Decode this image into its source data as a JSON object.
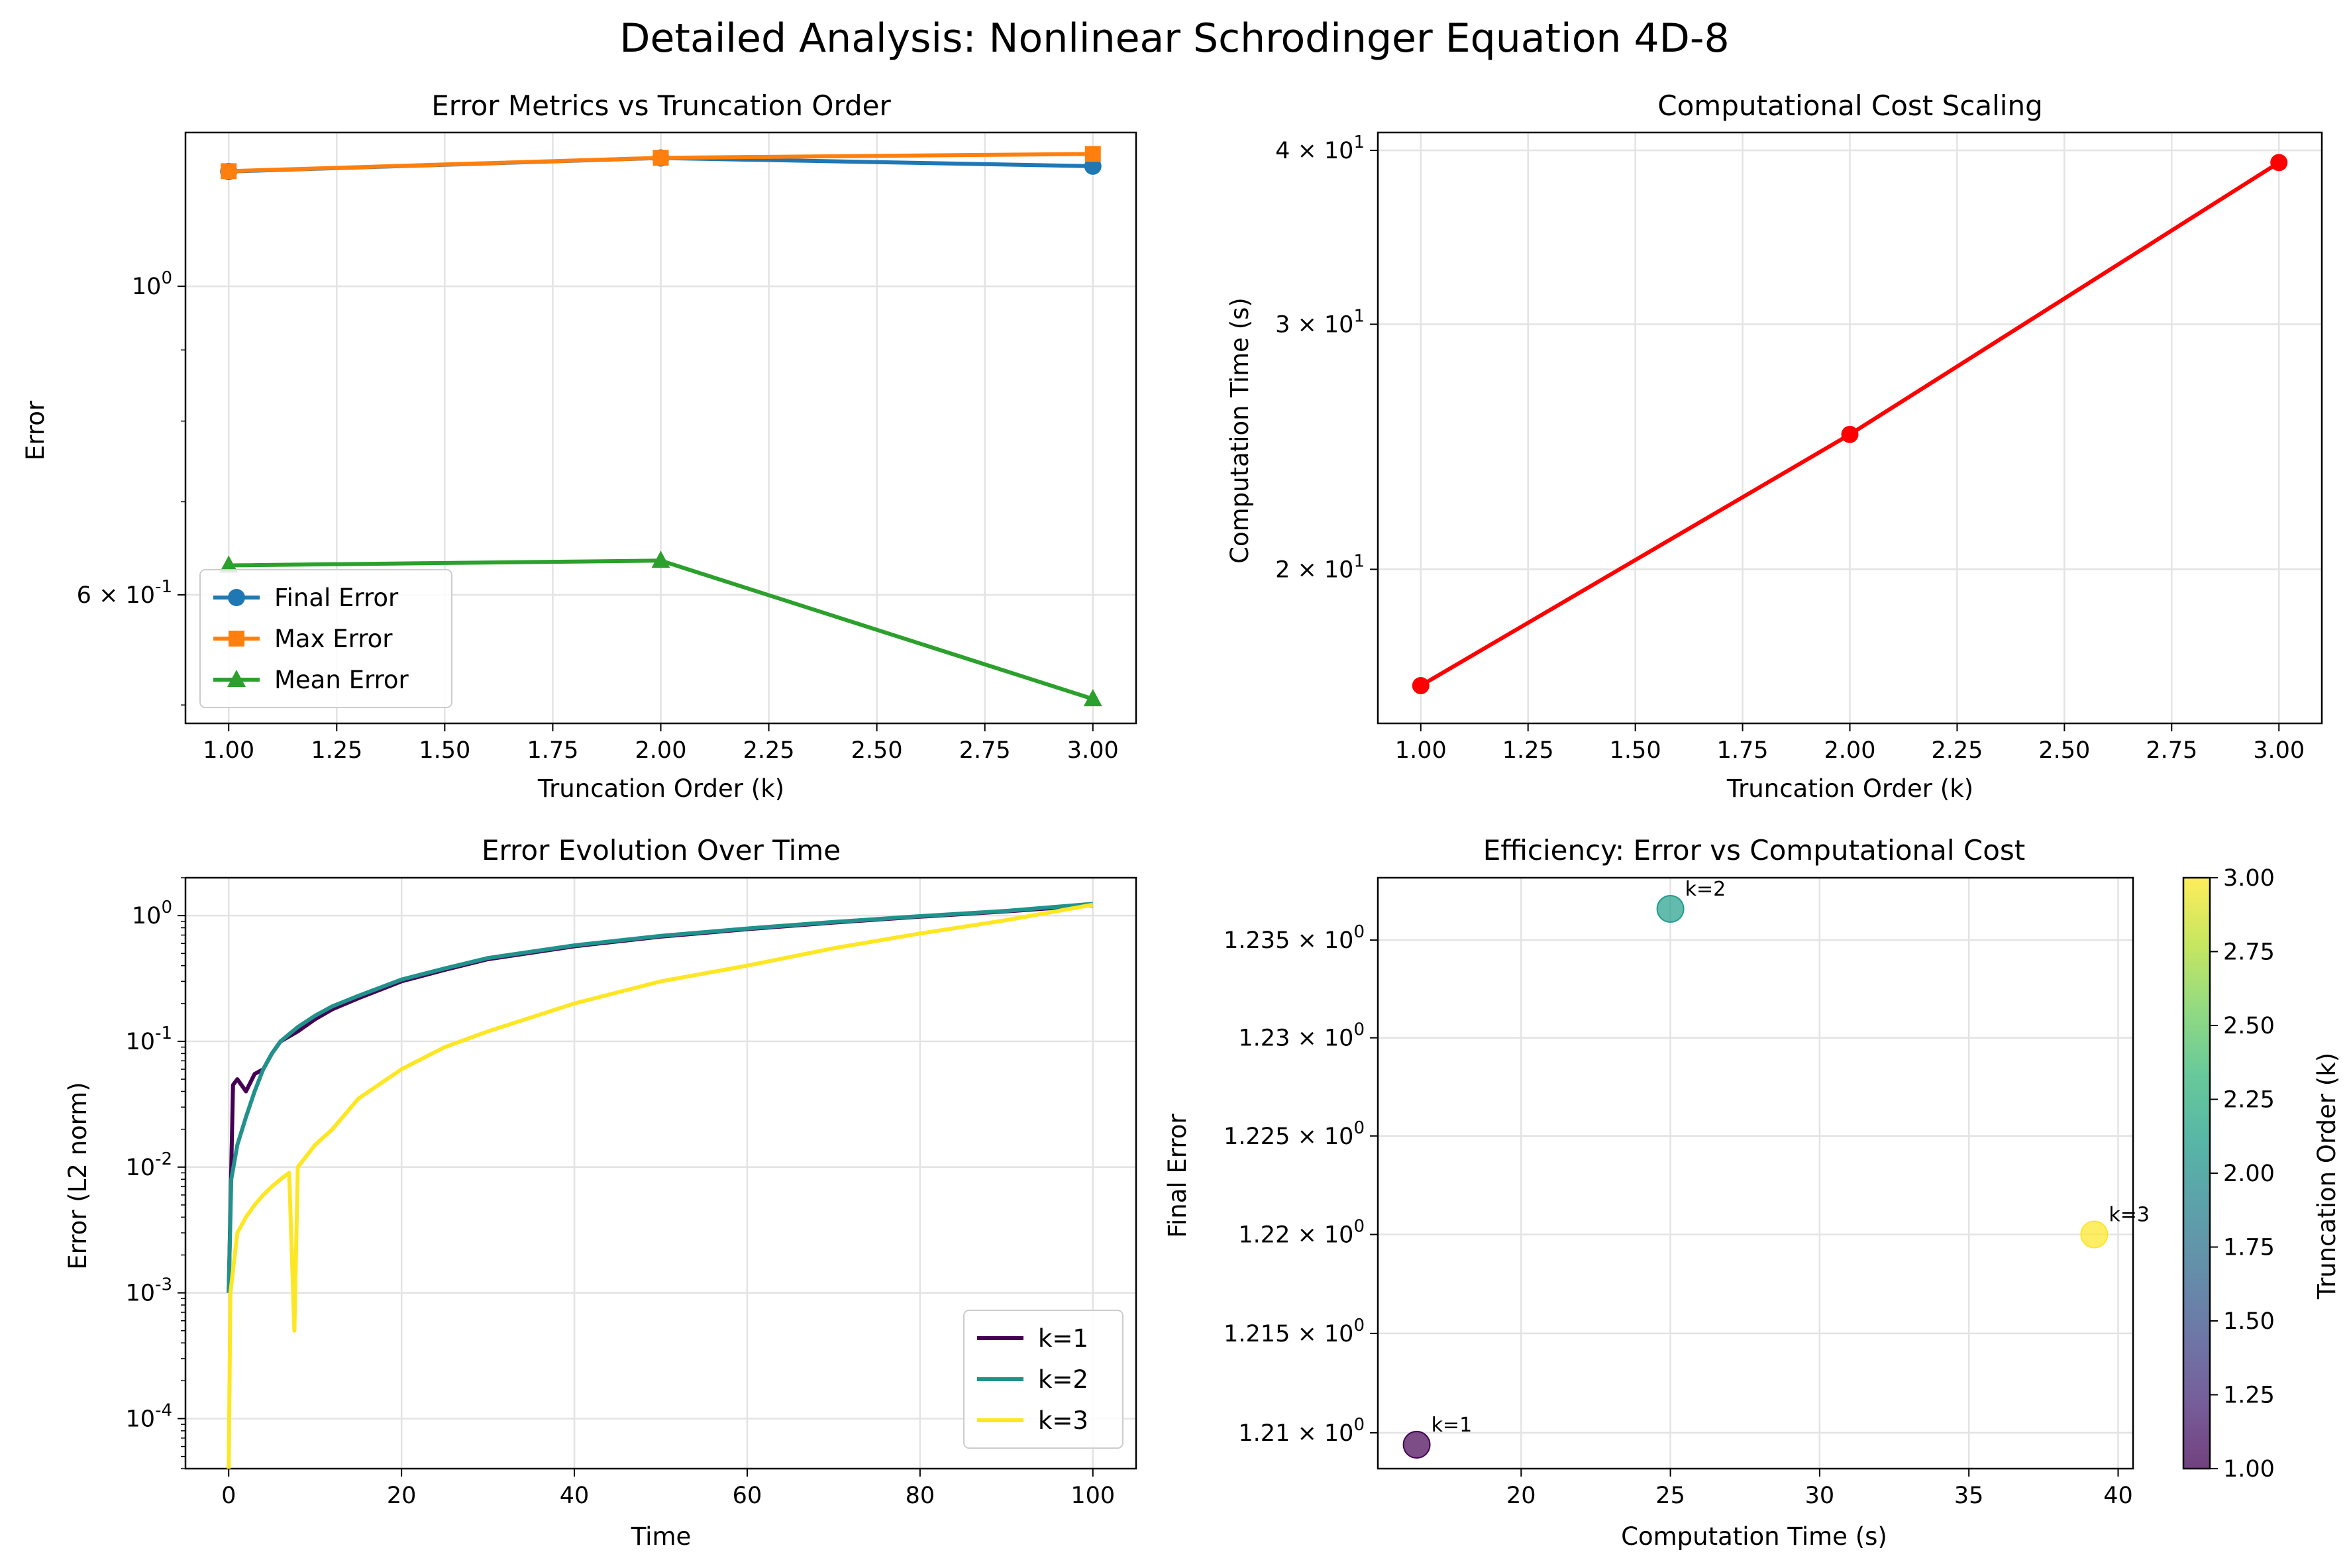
{
  "suptitle": "Detailed Analysis: Nonlinear Schrodinger Equation 4D-8",
  "colors": {
    "final": "#1f77b4",
    "max": "#ff7f0e",
    "mean": "#2ca02c",
    "cost": "#ff0000",
    "k1": "#440154",
    "k2": "#21918c",
    "k3": "#fde725"
  },
  "chart_data": [
    {
      "type": "line",
      "title": "Error Metrics vs Truncation Order",
      "xlabel": "Truncation Order (k)",
      "ylabel": "Error",
      "yscale": "log",
      "xlim": [
        0.9,
        3.1
      ],
      "ylim": [
        0.485,
        1.29
      ],
      "xticks": [
        1.0,
        1.25,
        1.5,
        1.75,
        2.0,
        2.25,
        2.5,
        2.75,
        3.0
      ],
      "xtick_labels": [
        "1.00",
        "1.25",
        "1.50",
        "1.75",
        "2.00",
        "2.25",
        "2.50",
        "2.75",
        "3.00"
      ],
      "yticks": [
        1.0,
        0.6
      ],
      "ytick_labels": [
        "10^0",
        "6 × 10^-1"
      ],
      "grid": true,
      "legend": "lower-left",
      "x": [
        1,
        2,
        3
      ],
      "series": [
        {
          "name": "Final Error",
          "marker": "circle",
          "color": "#1f77b4",
          "values": [
            1.2094,
            1.2366,
            1.22
          ]
        },
        {
          "name": "Max Error",
          "marker": "square",
          "color": "#ff7f0e",
          "values": [
            1.21,
            1.237,
            1.245
          ]
        },
        {
          "name": "Mean Error",
          "marker": "triangle",
          "color": "#2ca02c",
          "values": [
            0.63,
            0.635,
            0.505
          ]
        }
      ]
    },
    {
      "type": "line",
      "title": "Computational Cost Scaling",
      "xlabel": "Truncation Order (k)",
      "ylabel": "Computation Time (s)",
      "yscale": "log",
      "xlim": [
        0.9,
        3.1
      ],
      "ylim": [
        15.5,
        41.2
      ],
      "xticks": [
        1.0,
        1.25,
        1.5,
        1.75,
        2.0,
        2.25,
        2.5,
        2.75,
        3.0
      ],
      "xtick_labels": [
        "1.00",
        "1.25",
        "1.50",
        "1.75",
        "2.00",
        "2.25",
        "2.50",
        "2.75",
        "3.00"
      ],
      "yticks": [
        40,
        30,
        20
      ],
      "ytick_labels": [
        "4 × 10^1",
        "3 × 10^1",
        "2 × 10^1"
      ],
      "grid": true,
      "x": [
        1,
        2,
        3
      ],
      "series": [
        {
          "marker": "circle",
          "color": "#ff0000",
          "values": [
            16.5,
            25.0,
            39.2
          ]
        }
      ]
    },
    {
      "type": "line",
      "title": "Error Evolution Over Time",
      "xlabel": "Time",
      "ylabel": "Error (L2 norm)",
      "yscale": "log",
      "xlim": [
        -5,
        105
      ],
      "ylim": [
        4e-05,
        2.0
      ],
      "xticks": [
        0,
        20,
        40,
        60,
        80,
        100
      ],
      "xtick_labels": [
        "0",
        "20",
        "40",
        "60",
        "80",
        "100"
      ],
      "yticks": [
        1,
        0.1,
        0.01,
        0.001,
        0.0001
      ],
      "ytick_labels": [
        "10^0",
        "10^-1",
        "10^-2",
        "10^-3",
        "10^-4"
      ],
      "grid": true,
      "legend": "lower-right",
      "series": [
        {
          "name": "k=1",
          "color": "#440154",
          "x": [
            0,
            0.5,
            1,
            2,
            3,
            4,
            5,
            6,
            8,
            10,
            12,
            15,
            20,
            25,
            30,
            40,
            50,
            60,
            70,
            80,
            90,
            100
          ],
          "values": [
            0.001,
            0.045,
            0.05,
            0.04,
            0.055,
            0.06,
            0.08,
            0.1,
            0.12,
            0.15,
            0.18,
            0.22,
            0.3,
            0.37,
            0.45,
            0.57,
            0.68,
            0.78,
            0.88,
            0.98,
            1.08,
            1.21
          ]
        },
        {
          "name": "k=2",
          "color": "#21918c",
          "x": [
            0,
            0.3,
            1,
            2,
            3,
            4,
            5,
            6,
            8,
            10,
            12,
            15,
            20,
            25,
            30,
            40,
            50,
            60,
            70,
            80,
            90,
            100
          ],
          "values": [
            0.001,
            0.008,
            0.015,
            0.025,
            0.04,
            0.06,
            0.08,
            0.1,
            0.13,
            0.16,
            0.19,
            0.23,
            0.31,
            0.38,
            0.46,
            0.58,
            0.69,
            0.79,
            0.89,
            0.99,
            1.09,
            1.24
          ]
        },
        {
          "name": "k=3",
          "color": "#fde725",
          "x": [
            0,
            0.2,
            1,
            2,
            3,
            4,
            5,
            6,
            7,
            7.6,
            8,
            10,
            12,
            15,
            20,
            25,
            30,
            40,
            50,
            60,
            70,
            80,
            90,
            100
          ],
          "values": [
            4e-05,
            0.001,
            0.003,
            0.004,
            0.005,
            0.006,
            0.007,
            0.008,
            0.009,
            0.0005,
            0.01,
            0.015,
            0.02,
            0.035,
            0.06,
            0.09,
            0.12,
            0.2,
            0.3,
            0.4,
            0.55,
            0.72,
            0.92,
            1.22
          ]
        }
      ]
    },
    {
      "type": "scatter",
      "title": "Efficiency: Error vs Computational Cost",
      "xlabel": "Computation Time (s)",
      "ylabel": "Final Error",
      "yscale": "log",
      "xlim": [
        15.2,
        40.5
      ],
      "ylim": [
        1.2082,
        1.2382
      ],
      "xticks": [
        20,
        25,
        30,
        35,
        40
      ],
      "xtick_labels": [
        "20",
        "25",
        "30",
        "35",
        "40"
      ],
      "yticks": [
        1.235,
        1.23,
        1.225,
        1.22,
        1.215,
        1.21
      ],
      "ytick_labels": [
        "1.235 × 10^0",
        "1.23 × 10^0",
        "1.225 × 10^0",
        "1.22 × 10^0",
        "1.215 × 10^0",
        "1.21 × 10^0"
      ],
      "grid": true,
      "points": [
        {
          "x": 16.5,
          "y": 1.2094,
          "k": 1,
          "label": "k=1"
        },
        {
          "x": 25.0,
          "y": 1.2366,
          "k": 2,
          "label": "k=2"
        },
        {
          "x": 39.2,
          "y": 1.22,
          "k": 3,
          "label": "k=3"
        }
      ],
      "colorbar": {
        "label": "Truncation Order (k)",
        "range": [
          1.0,
          3.0
        ],
        "ticks": [
          1.0,
          1.25,
          1.5,
          1.75,
          2.0,
          2.25,
          2.5,
          2.75,
          3.0
        ],
        "tick_labels": [
          "1.00",
          "1.25",
          "1.50",
          "1.75",
          "2.00",
          "2.25",
          "2.50",
          "2.75",
          "3.00"
        ],
        "colormap": "viridis"
      }
    }
  ]
}
